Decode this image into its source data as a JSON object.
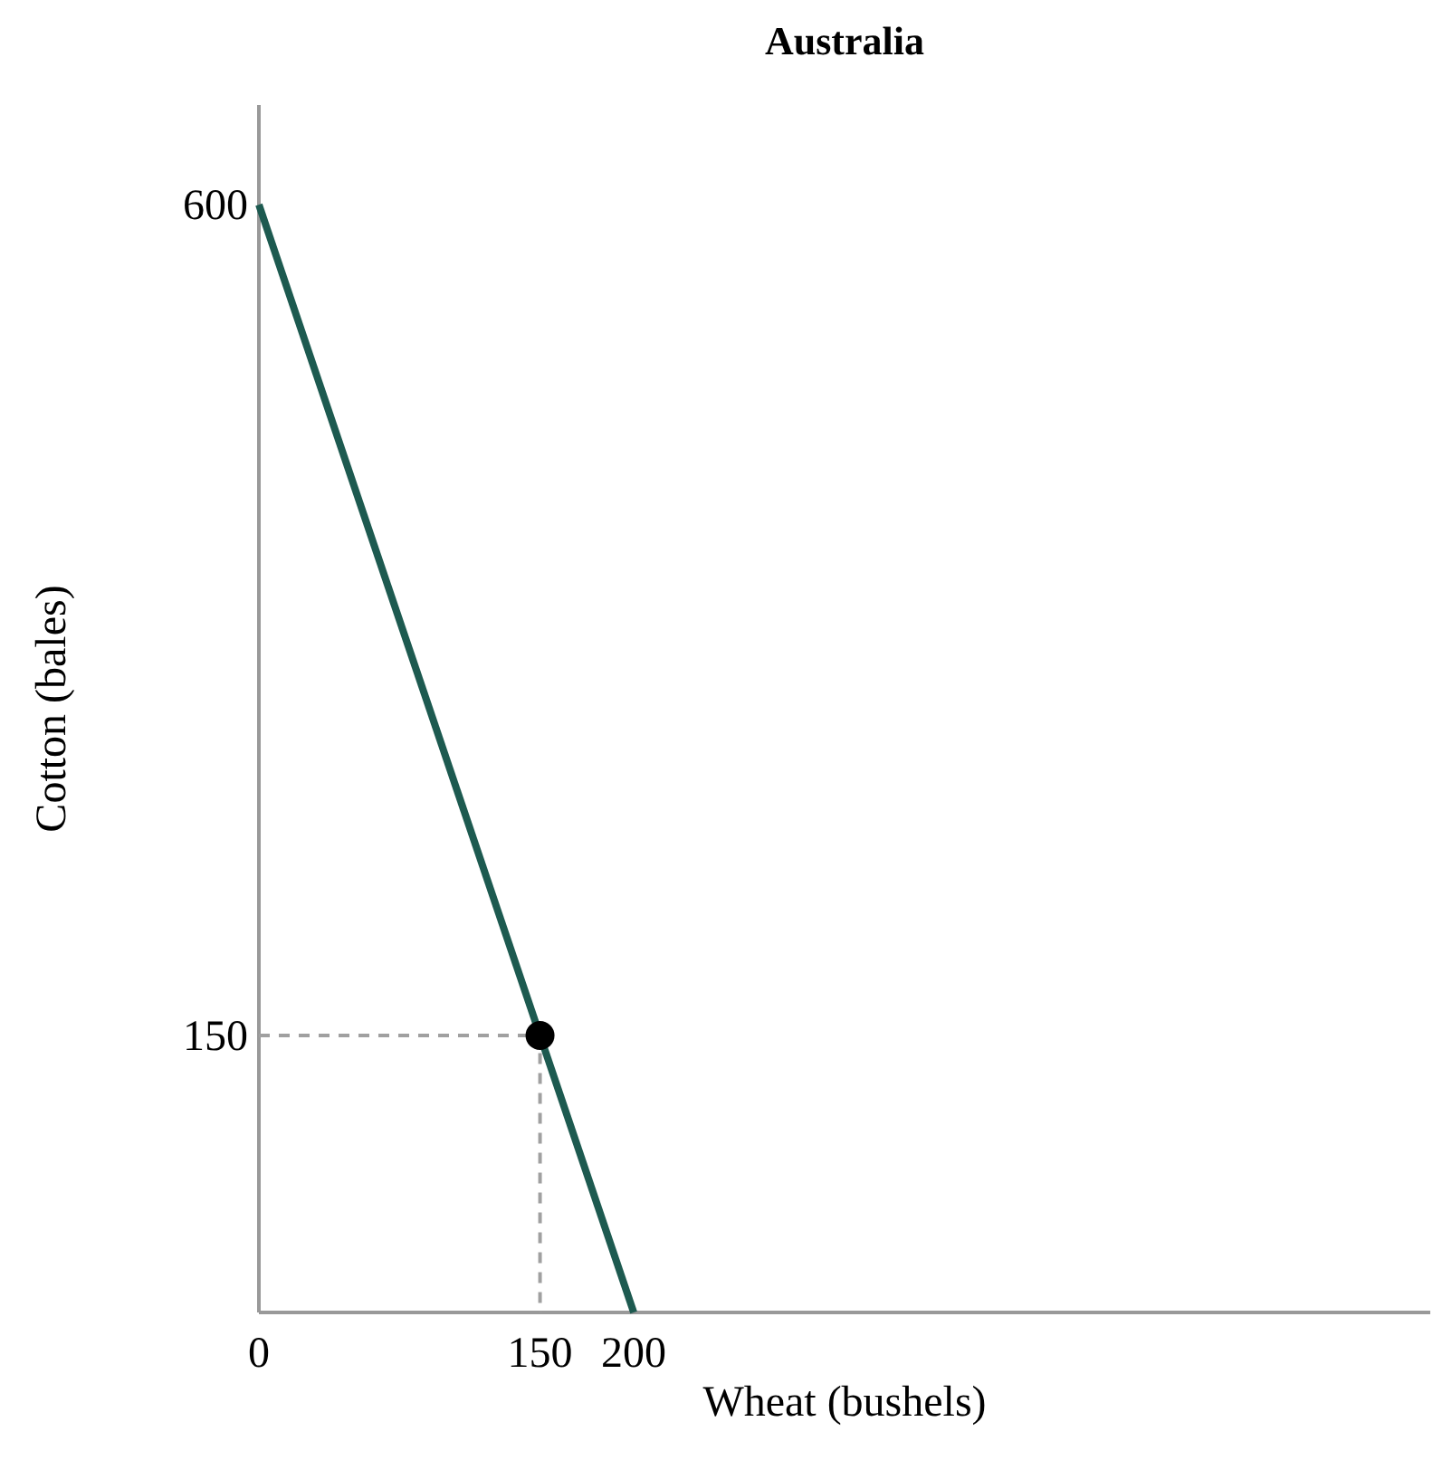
{
  "chart_data": {
    "type": "line",
    "title": "Australia",
    "xlabel": "Wheat (bushels)",
    "ylabel": "Cotton (bales)",
    "xlim": [
      0,
      625
    ],
    "ylim": [
      0,
      654
    ],
    "xticks": [
      0,
      150,
      200
    ],
    "yticks": [
      150,
      600
    ],
    "grid": false,
    "series": [
      {
        "color": "#a0a0a0",
        "line_style": "dashed",
        "marker": "none",
        "x": [
          0,
          150,
          150
        ],
        "values": [
          150,
          150,
          0
        ]
      },
      {
        "color": "#1d5a50",
        "line_style": "solid",
        "marker": "none",
        "x": [
          0,
          200
        ],
        "values": [
          600,
          0
        ]
      },
      {
        "type": "scatter",
        "color": "#000000",
        "marker": "circle",
        "x": [
          150
        ],
        "values": [
          150
        ]
      }
    ]
  }
}
